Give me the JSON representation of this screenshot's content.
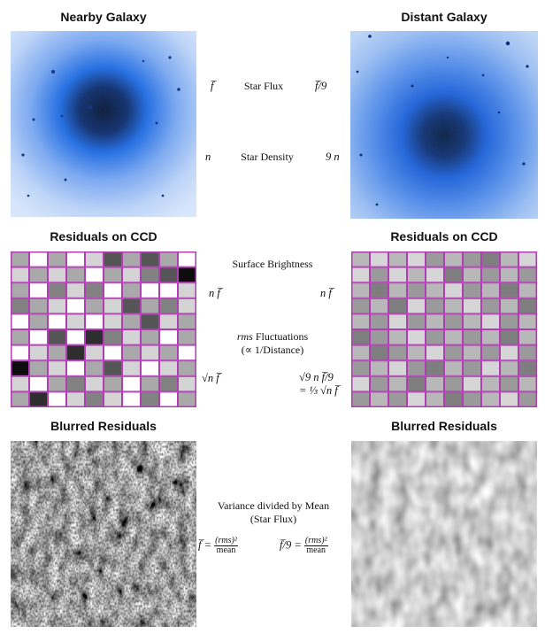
{
  "headers": {
    "left_top": "Nearby Galaxy",
    "right_top": "Distant Galaxy",
    "left_mid": "Residuals on CCD",
    "right_mid": "Residuals on CCD",
    "left_bot": "Blurred Residuals",
    "right_bot": "Blurred Residuals"
  },
  "row1": {
    "flux_left": "f̅",
    "flux_label": "Star Flux",
    "flux_right": "f̅/9",
    "density_left": "n",
    "density_label": "Star Density",
    "density_right": "9 n"
  },
  "row2": {
    "surface_label": "Surface Brightness",
    "sb_left": "n f̅",
    "sb_right": "n f̅",
    "rms_label_1": "rms",
    "rms_label_1b": " Fluctuations",
    "rms_label_2": "(∝ 1/Distance)",
    "rms_left": "√n f̅",
    "rms_right_1": "√9 n f̅/9",
    "rms_right_2": "= ⅓ √n f̅"
  },
  "row3": {
    "variance_label_1": "Variance divided by Mean",
    "variance_label_2": "(Star Flux)",
    "eq_left_lhs": "f̅ =",
    "eq_right_lhs": "f̅/9 =",
    "frac_num": "(rms)²",
    "frac_den": "mean"
  },
  "colors": {
    "galaxy_core": "#071a3a",
    "galaxy_halo": "#1f6be0",
    "sky": "#dbe8fb",
    "grid_line": "#b23cb6"
  },
  "grid_left": [
    [
      2,
      0,
      2,
      0,
      1,
      4,
      2,
      4,
      2,
      0
    ],
    [
      1,
      2,
      1,
      2,
      0,
      2,
      1,
      3,
      4,
      6
    ],
    [
      2,
      0,
      3,
      1,
      3,
      0,
      2,
      0,
      0,
      1
    ],
    [
      3,
      2,
      1,
      0,
      2,
      1,
      4,
      2,
      3,
      1
    ],
    [
      0,
      2,
      0,
      1,
      0,
      1,
      2,
      4,
      1,
      2
    ],
    [
      2,
      0,
      4,
      0,
      5,
      3,
      1,
      2,
      0,
      2
    ],
    [
      0,
      1,
      2,
      5,
      1,
      0,
      2,
      1,
      2,
      0
    ],
    [
      6,
      2,
      1,
      0,
      2,
      4,
      1,
      0,
      1,
      2
    ],
    [
      1,
      0,
      2,
      3,
      1,
      2,
      0,
      2,
      3,
      1
    ],
    [
      2,
      5,
      0,
      1,
      3,
      1,
      0,
      3,
      0,
      2
    ]
  ],
  "grid_right": [
    [
      1,
      0,
      1,
      0,
      2,
      1,
      2,
      3,
      1,
      0
    ],
    [
      0,
      2,
      0,
      1,
      0,
      3,
      1,
      2,
      1,
      2
    ],
    [
      1,
      3,
      1,
      2,
      1,
      0,
      2,
      1,
      3,
      1
    ],
    [
      2,
      1,
      3,
      0,
      2,
      1,
      0,
      2,
      1,
      3
    ],
    [
      1,
      2,
      0,
      2,
      1,
      2,
      1,
      0,
      2,
      1
    ],
    [
      3,
      2,
      1,
      0,
      2,
      1,
      2,
      1,
      3,
      1
    ],
    [
      1,
      3,
      2,
      1,
      0,
      2,
      1,
      2,
      0,
      2
    ],
    [
      2,
      1,
      0,
      2,
      3,
      1,
      2,
      0,
      1,
      3
    ],
    [
      0,
      2,
      1,
      3,
      1,
      2,
      0,
      1,
      2,
      1
    ],
    [
      2,
      1,
      2,
      0,
      1,
      3,
      2,
      1,
      0,
      2
    ]
  ]
}
